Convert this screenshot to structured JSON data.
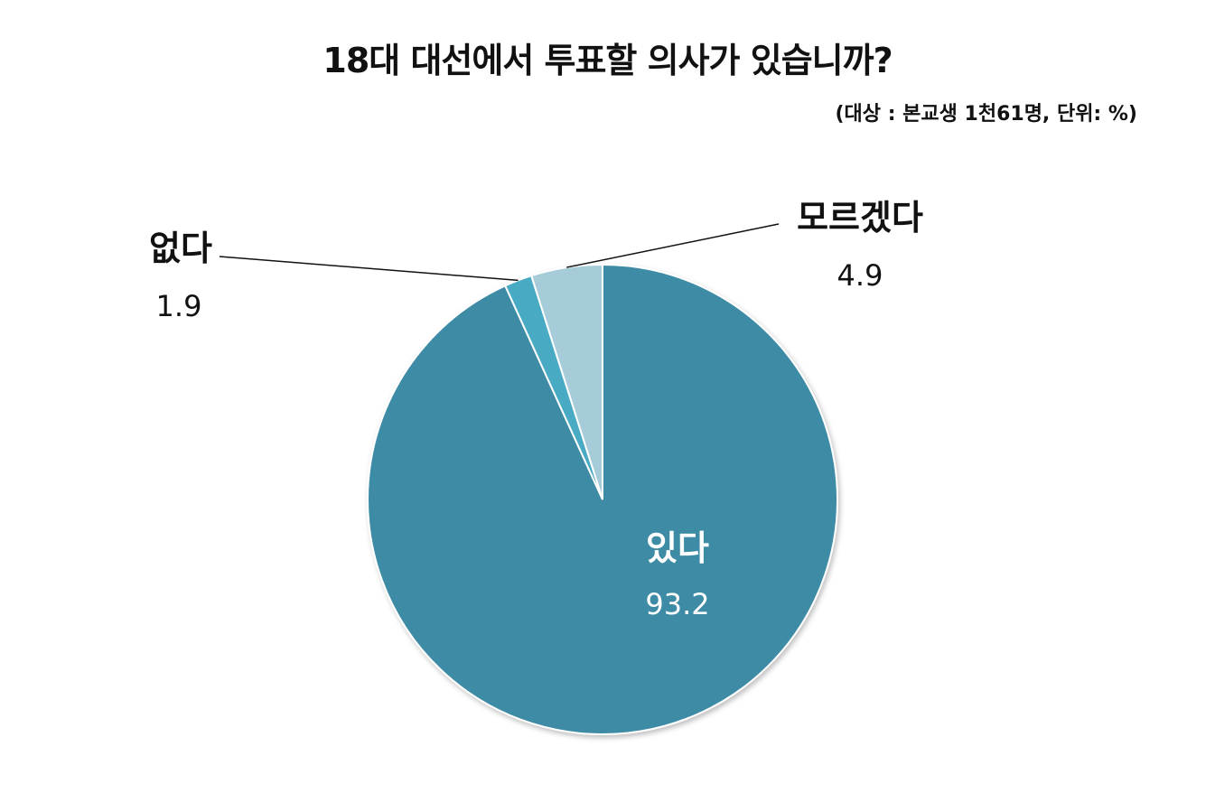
{
  "title": "18대 대선에서 투표할 의사가 있습니까?",
  "subtitle": "(대상 : 본교생 1천61명, 단위: %)",
  "chart_data": {
    "type": "pie",
    "title": "18대 대선에서 투표할 의사가 있습니까?",
    "subtitle": "(대상 : 본교생 1천61명, 단위: %)",
    "slices": [
      {
        "label": "있다",
        "value": 93.2,
        "value_label": "93.2",
        "color": "#3e8ba5"
      },
      {
        "label": "없다",
        "value": 1.9,
        "value_label": "1.9",
        "color": "#4aaac4"
      },
      {
        "label": "모르겠다",
        "value": 4.9,
        "value_label": "4.9",
        "color": "#a7ccd9"
      }
    ],
    "legend": "none"
  }
}
